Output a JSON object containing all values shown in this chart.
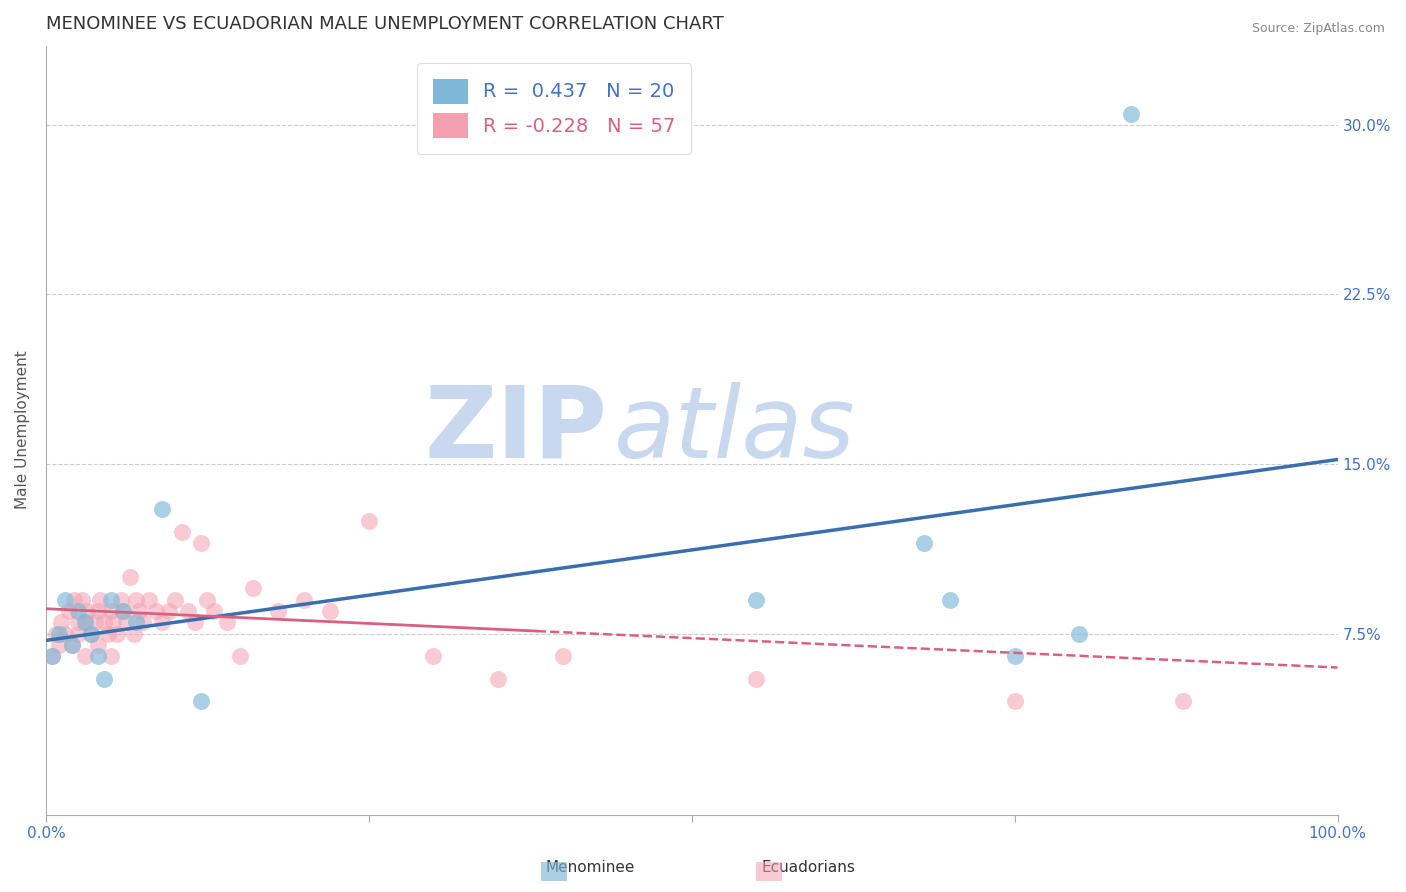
{
  "title": "MENOMINEE VS ECUADORIAN MALE UNEMPLOYMENT CORRELATION CHART",
  "source": "Source: ZipAtlas.com",
  "ylabel": "Male Unemployment",
  "xlim": [
    0.0,
    1.0
  ],
  "ylim": [
    -0.005,
    0.335
  ],
  "yticks": [
    0.0,
    0.075,
    0.15,
    0.225,
    0.3
  ],
  "ytick_labels": [
    "",
    "7.5%",
    "15.0%",
    "22.5%",
    "30.0%"
  ],
  "xtick_positions": [
    0.0,
    0.25,
    0.5,
    0.75,
    1.0
  ],
  "xtick_labels": [
    "0.0%",
    "",
    "",
    "",
    "100.0%"
  ],
  "menominee_R": 0.437,
  "menominee_N": 20,
  "ecuadorian_R": -0.228,
  "ecuadorian_N": 57,
  "blue_color": "#7db8d8",
  "pink_color": "#f4a0b0",
  "line_blue": "#3a6faf",
  "line_pink": "#d96080",
  "watermark_zip": "ZIP",
  "watermark_atlas": "atlas",
  "watermark_color": "#c8d8ee",
  "title_fontsize": 13,
  "axis_label_fontsize": 11,
  "tick_fontsize": 11,
  "background_color": "#ffffff",
  "grid_color": "#cccccc",
  "menominee_x": [
    0.005,
    0.01,
    0.015,
    0.02,
    0.025,
    0.03,
    0.035,
    0.04,
    0.045,
    0.05,
    0.06,
    0.07,
    0.09,
    0.12,
    0.55,
    0.68,
    0.7,
    0.75,
    0.8,
    0.84
  ],
  "menominee_y": [
    0.065,
    0.075,
    0.09,
    0.07,
    0.085,
    0.08,
    0.075,
    0.065,
    0.055,
    0.09,
    0.085,
    0.08,
    0.13,
    0.045,
    0.09,
    0.115,
    0.09,
    0.065,
    0.075,
    0.305
  ],
  "ecuadorian_x": [
    0.005,
    0.008,
    0.01,
    0.012,
    0.015,
    0.018,
    0.02,
    0.022,
    0.025,
    0.025,
    0.028,
    0.03,
    0.03,
    0.032,
    0.035,
    0.038,
    0.04,
    0.04,
    0.042,
    0.045,
    0.048,
    0.05,
    0.05,
    0.052,
    0.055,
    0.058,
    0.06,
    0.062,
    0.065,
    0.068,
    0.07,
    0.072,
    0.075,
    0.08,
    0.085,
    0.09,
    0.095,
    0.1,
    0.105,
    0.11,
    0.115,
    0.12,
    0.125,
    0.13,
    0.14,
    0.15,
    0.16,
    0.18,
    0.2,
    0.22,
    0.25,
    0.3,
    0.35,
    0.4,
    0.55,
    0.75,
    0.88
  ],
  "ecuadorian_y": [
    0.065,
    0.075,
    0.07,
    0.08,
    0.075,
    0.085,
    0.07,
    0.09,
    0.08,
    0.075,
    0.09,
    0.08,
    0.065,
    0.085,
    0.075,
    0.08,
    0.085,
    0.07,
    0.09,
    0.08,
    0.075,
    0.085,
    0.065,
    0.08,
    0.075,
    0.09,
    0.085,
    0.08,
    0.1,
    0.075,
    0.09,
    0.085,
    0.08,
    0.09,
    0.085,
    0.08,
    0.085,
    0.09,
    0.12,
    0.085,
    0.08,
    0.115,
    0.09,
    0.085,
    0.08,
    0.065,
    0.095,
    0.085,
    0.09,
    0.085,
    0.125,
    0.065,
    0.055,
    0.065,
    0.055,
    0.045,
    0.045
  ],
  "men_line_x0": 0.0,
  "men_line_x1": 1.0,
  "men_line_y0": 0.072,
  "men_line_y1": 0.152,
  "ecu_line_x0": 0.0,
  "ecu_line_x1": 1.0,
  "ecu_line_y0": 0.086,
  "ecu_line_y1": 0.06
}
